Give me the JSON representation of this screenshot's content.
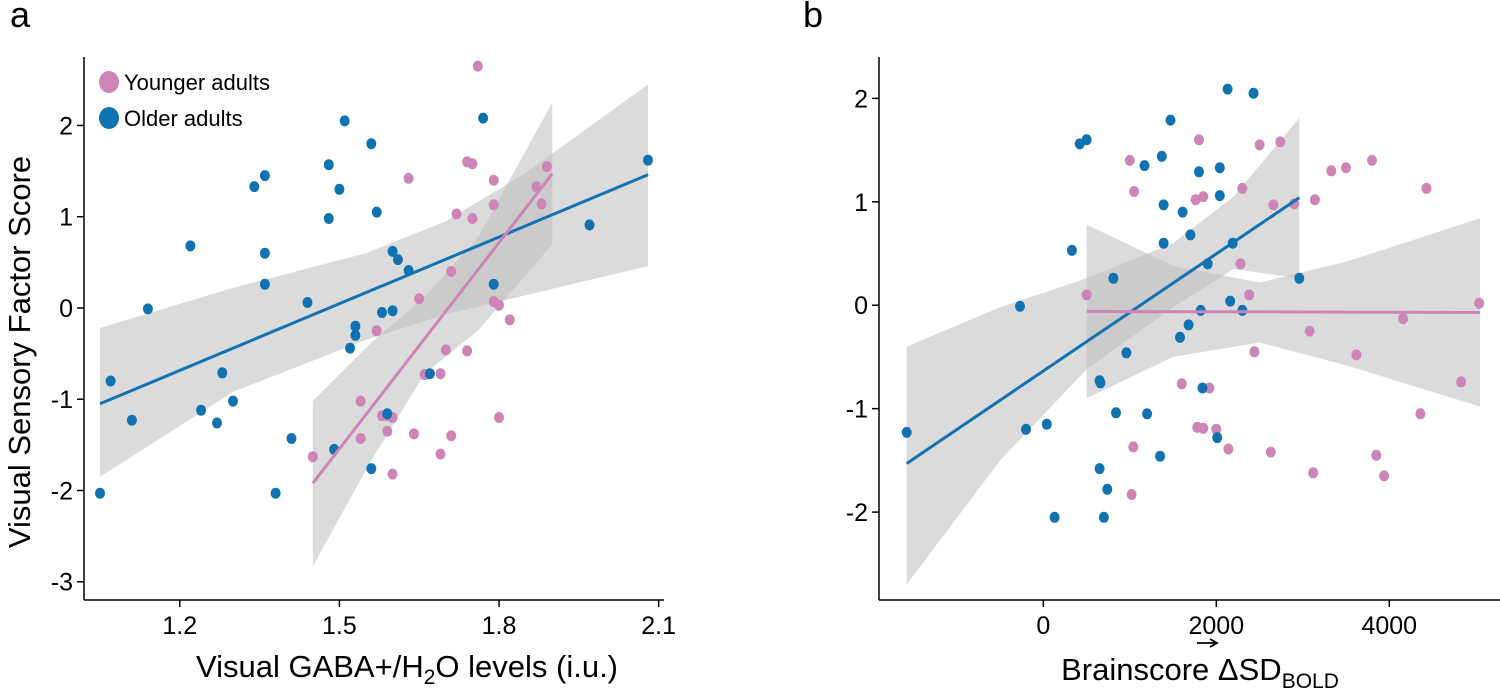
{
  "colors": {
    "younger": "#cd85b8",
    "older": "#1072b1",
    "ci_band": "#bdbdbd",
    "axis": "#000000"
  },
  "chart_data": [
    {
      "type": "scatter",
      "panel_label": "a",
      "xlabel_main": "Visual GABA+/H",
      "xlabel_sub": "2",
      "xlabel_tail": "O levels (i.u.)",
      "ylabel": "Visual Sensory Factor Score",
      "xlim": [
        1.02,
        2.11
      ],
      "ylim": [
        -3.2,
        2.75
      ],
      "xticks": [
        1.2,
        1.5,
        1.8,
        2.1
      ],
      "xtick_labels": [
        "1.2",
        "1.5",
        "1.8",
        "2.1"
      ],
      "yticks": [
        -3,
        -2,
        -1,
        0,
        1,
        2
      ],
      "ytick_labels": [
        "-3",
        "-2",
        "-1",
        "0",
        "1",
        "2"
      ],
      "legend": {
        "position": "top-left",
        "entries": [
          {
            "label": "Younger adults",
            "group": "younger"
          },
          {
            "label": "Older adults",
            "group": "older"
          }
        ]
      },
      "series": [
        {
          "name": "Younger adults",
          "group": "younger",
          "points": [
            [
              1.76,
              2.65
            ],
            [
              1.74,
              1.6
            ],
            [
              1.75,
              1.58
            ],
            [
              1.79,
              1.4
            ],
            [
              1.63,
              1.42
            ],
            [
              1.89,
              1.55
            ],
            [
              1.87,
              1.33
            ],
            [
              1.88,
              1.14
            ],
            [
              1.72,
              1.03
            ],
            [
              1.75,
              0.98
            ],
            [
              1.79,
              1.13
            ],
            [
              1.71,
              0.4
            ],
            [
              1.79,
              0.07
            ],
            [
              1.8,
              0.03
            ],
            [
              1.82,
              -0.13
            ],
            [
              1.65,
              0.1
            ],
            [
              1.57,
              -0.25
            ],
            [
              1.7,
              -0.46
            ],
            [
              1.74,
              -0.47
            ],
            [
              1.66,
              -0.73
            ],
            [
              1.69,
              -0.72
            ],
            [
              1.54,
              -1.02
            ],
            [
              1.58,
              -1.18
            ],
            [
              1.59,
              -1.18
            ],
            [
              1.6,
              -1.2
            ],
            [
              1.59,
              -1.35
            ],
            [
              1.64,
              -1.38
            ],
            [
              1.71,
              -1.4
            ],
            [
              1.54,
              -1.43
            ],
            [
              1.8,
              -1.2
            ],
            [
              1.69,
              -1.6
            ],
            [
              1.45,
              -1.63
            ],
            [
              1.6,
              -1.82
            ]
          ],
          "fit": {
            "x": [
              1.45,
              1.9
            ],
            "y": [
              -1.92,
              1.47
            ]
          },
          "ci_upper": [
            [
              1.45,
              -1.02
            ],
            [
              1.56,
              -0.38
            ],
            [
              1.66,
              0.12
            ],
            [
              1.76,
              0.77
            ],
            [
              1.9,
              2.25
            ]
          ],
          "ci_lower": [
            [
              1.9,
              0.7
            ],
            [
              1.76,
              -0.25
            ],
            [
              1.66,
              -0.72
            ],
            [
              1.56,
              -1.67
            ],
            [
              1.45,
              -2.83
            ]
          ]
        },
        {
          "name": "Older adults",
          "group": "older",
          "points": [
            [
              1.05,
              -2.03
            ],
            [
              1.07,
              -0.8
            ],
            [
              1.11,
              -1.23
            ],
            [
              1.14,
              -0.01
            ],
            [
              1.22,
              0.68
            ],
            [
              1.24,
              -1.12
            ],
            [
              1.27,
              -1.26
            ],
            [
              1.28,
              -0.71
            ],
            [
              1.3,
              -1.02
            ],
            [
              1.34,
              1.33
            ],
            [
              1.36,
              1.45
            ],
            [
              1.36,
              0.6
            ],
            [
              1.36,
              0.26
            ],
            [
              1.38,
              -2.03
            ],
            [
              1.41,
              -1.43
            ],
            [
              1.44,
              0.06
            ],
            [
              1.48,
              1.57
            ],
            [
              1.48,
              0.98
            ],
            [
              1.49,
              -1.55
            ],
            [
              1.5,
              1.3
            ],
            [
              1.51,
              2.05
            ],
            [
              1.52,
              -0.44
            ],
            [
              1.53,
              -0.2
            ],
            [
              1.53,
              -0.3
            ],
            [
              1.56,
              1.8
            ],
            [
              1.56,
              -1.76
            ],
            [
              1.57,
              1.05
            ],
            [
              1.58,
              -0.05
            ],
            [
              1.59,
              -1.16
            ],
            [
              1.6,
              0.62
            ],
            [
              1.6,
              -0.03
            ],
            [
              1.61,
              0.53
            ],
            [
              1.63,
              0.41
            ],
            [
              1.67,
              -0.72
            ],
            [
              1.77,
              2.08
            ],
            [
              1.79,
              0.26
            ],
            [
              1.97,
              0.91
            ],
            [
              2.08,
              1.62
            ]
          ],
          "fit": {
            "x": [
              1.05,
              2.08
            ],
            "y": [
              -1.05,
              1.46
            ]
          },
          "ci_upper": [
            [
              1.05,
              -0.22
            ],
            [
              1.3,
              0.22
            ],
            [
              1.55,
              0.6
            ],
            [
              1.7,
              0.95
            ],
            [
              1.85,
              1.48
            ],
            [
              2.08,
              2.45
            ]
          ],
          "ci_lower": [
            [
              2.08,
              0.46
            ],
            [
              1.85,
              0.14
            ],
            [
              1.7,
              -0.07
            ],
            [
              1.55,
              -0.35
            ],
            [
              1.3,
              -0.92
            ],
            [
              1.05,
              -1.85
            ]
          ]
        }
      ]
    },
    {
      "type": "scatter",
      "panel_label": "b",
      "xlabel_main": "Brainscore ",
      "xlabel_delta": "ΔSD",
      "xlabel_sub": "BOLD",
      "ylabel": "",
      "xlim": [
        -1900,
        5280
      ],
      "ylim": [
        -2.85,
        2.4
      ],
      "xticks": [
        0,
        2000,
        4000
      ],
      "xtick_labels": [
        "0",
        "2000",
        "4000"
      ],
      "yticks": [
        -2,
        -1,
        0,
        1,
        2
      ],
      "ytick_labels": [
        "-2",
        "-1",
        "0",
        "1",
        "2"
      ],
      "series": [
        {
          "name": "Younger adults",
          "group": "younger",
          "points": [
            [
              500,
              0.1
            ],
            [
              1000,
              1.4
            ],
            [
              1050,
              1.1
            ],
            [
              1800,
              1.6
            ],
            [
              1760,
              1.02
            ],
            [
              1850,
              1.05
            ],
            [
              2300,
              1.13
            ],
            [
              2280,
              0.4
            ],
            [
              2380,
              0.1
            ],
            [
              2500,
              1.55
            ],
            [
              2740,
              1.58
            ],
            [
              2660,
              0.97
            ],
            [
              2900,
              0.98
            ],
            [
              3140,
              1.02
            ],
            [
              3330,
              1.3
            ],
            [
              3500,
              1.33
            ],
            [
              3800,
              1.4
            ],
            [
              4430,
              1.13
            ],
            [
              5040,
              0.02
            ],
            [
              4160,
              -0.13
            ],
            [
              3080,
              -0.25
            ],
            [
              2440,
              -0.45
            ],
            [
              3620,
              -0.48
            ],
            [
              1600,
              -0.76
            ],
            [
              1920,
              -0.8
            ],
            [
              4830,
              -0.74
            ],
            [
              1780,
              -1.18
            ],
            [
              1850,
              -1.19
            ],
            [
              2000,
              -1.2
            ],
            [
              1040,
              -1.37
            ],
            [
              2140,
              -1.39
            ],
            [
              2630,
              -1.42
            ],
            [
              3850,
              -1.45
            ],
            [
              4360,
              -1.05
            ],
            [
              3120,
              -1.62
            ],
            [
              3940,
              -1.65
            ],
            [
              1020,
              -1.83
            ]
          ],
          "fit": {
            "x": [
              500,
              5050
            ],
            "y": [
              -0.06,
              -0.07
            ]
          },
          "ci_upper": [
            [
              500,
              0.78
            ],
            [
              1500,
              0.38
            ],
            [
              2500,
              0.22
            ],
            [
              3500,
              0.42
            ],
            [
              5050,
              0.84
            ]
          ],
          "ci_lower": [
            [
              5050,
              -0.98
            ],
            [
              3500,
              -0.58
            ],
            [
              2500,
              -0.36
            ],
            [
              1500,
              -0.5
            ],
            [
              500,
              -0.9
            ]
          ]
        },
        {
          "name": "Older adults",
          "group": "older",
          "points": [
            [
              -1580,
              -1.23
            ],
            [
              -270,
              -0.01
            ],
            [
              -200,
              -1.2
            ],
            [
              40,
              -1.15
            ],
            [
              130,
              -2.05
            ],
            [
              330,
              0.53
            ],
            [
              420,
              1.56
            ],
            [
              500,
              1.6
            ],
            [
              660,
              -0.75
            ],
            [
              650,
              -0.73
            ],
            [
              650,
              -1.58
            ],
            [
              700,
              -2.05
            ],
            [
              740,
              -1.78
            ],
            [
              810,
              0.26
            ],
            [
              840,
              -1.04
            ],
            [
              960,
              -0.46
            ],
            [
              1170,
              1.35
            ],
            [
              1200,
              -1.05
            ],
            [
              1350,
              -1.46
            ],
            [
              1370,
              1.44
            ],
            [
              1390,
              0.6
            ],
            [
              1390,
              0.97
            ],
            [
              1470,
              1.79
            ],
            [
              1580,
              -0.31
            ],
            [
              1610,
              0.9
            ],
            [
              1680,
              -0.19
            ],
            [
              1700,
              0.68
            ],
            [
              1800,
              1.29
            ],
            [
              1820,
              -0.05
            ],
            [
              1840,
              -0.8
            ],
            [
              1900,
              0.4
            ],
            [
              2010,
              -1.28
            ],
            [
              2040,
              1.33
            ],
            [
              2040,
              1.06
            ],
            [
              2130,
              2.09
            ],
            [
              2160,
              0.04
            ],
            [
              2190,
              0.6
            ],
            [
              2300,
              -0.05
            ],
            [
              2430,
              2.05
            ],
            [
              2960,
              0.26
            ]
          ],
          "fit": {
            "x": [
              -1580,
              2960
            ],
            "y": [
              -1.53,
              1.04
            ]
          },
          "ci_upper": [
            [
              -1580,
              -0.4
            ],
            [
              -500,
              -0.02
            ],
            [
              500,
              0.26
            ],
            [
              1500,
              0.6
            ],
            [
              2200,
              1.05
            ],
            [
              2960,
              1.81
            ]
          ],
          "ci_lower": [
            [
              2960,
              0.26
            ],
            [
              2200,
              0.35
            ],
            [
              1500,
              -0.02
            ],
            [
              500,
              -0.62
            ],
            [
              -500,
              -1.5
            ],
            [
              -1580,
              -2.7
            ]
          ]
        }
      ]
    }
  ]
}
